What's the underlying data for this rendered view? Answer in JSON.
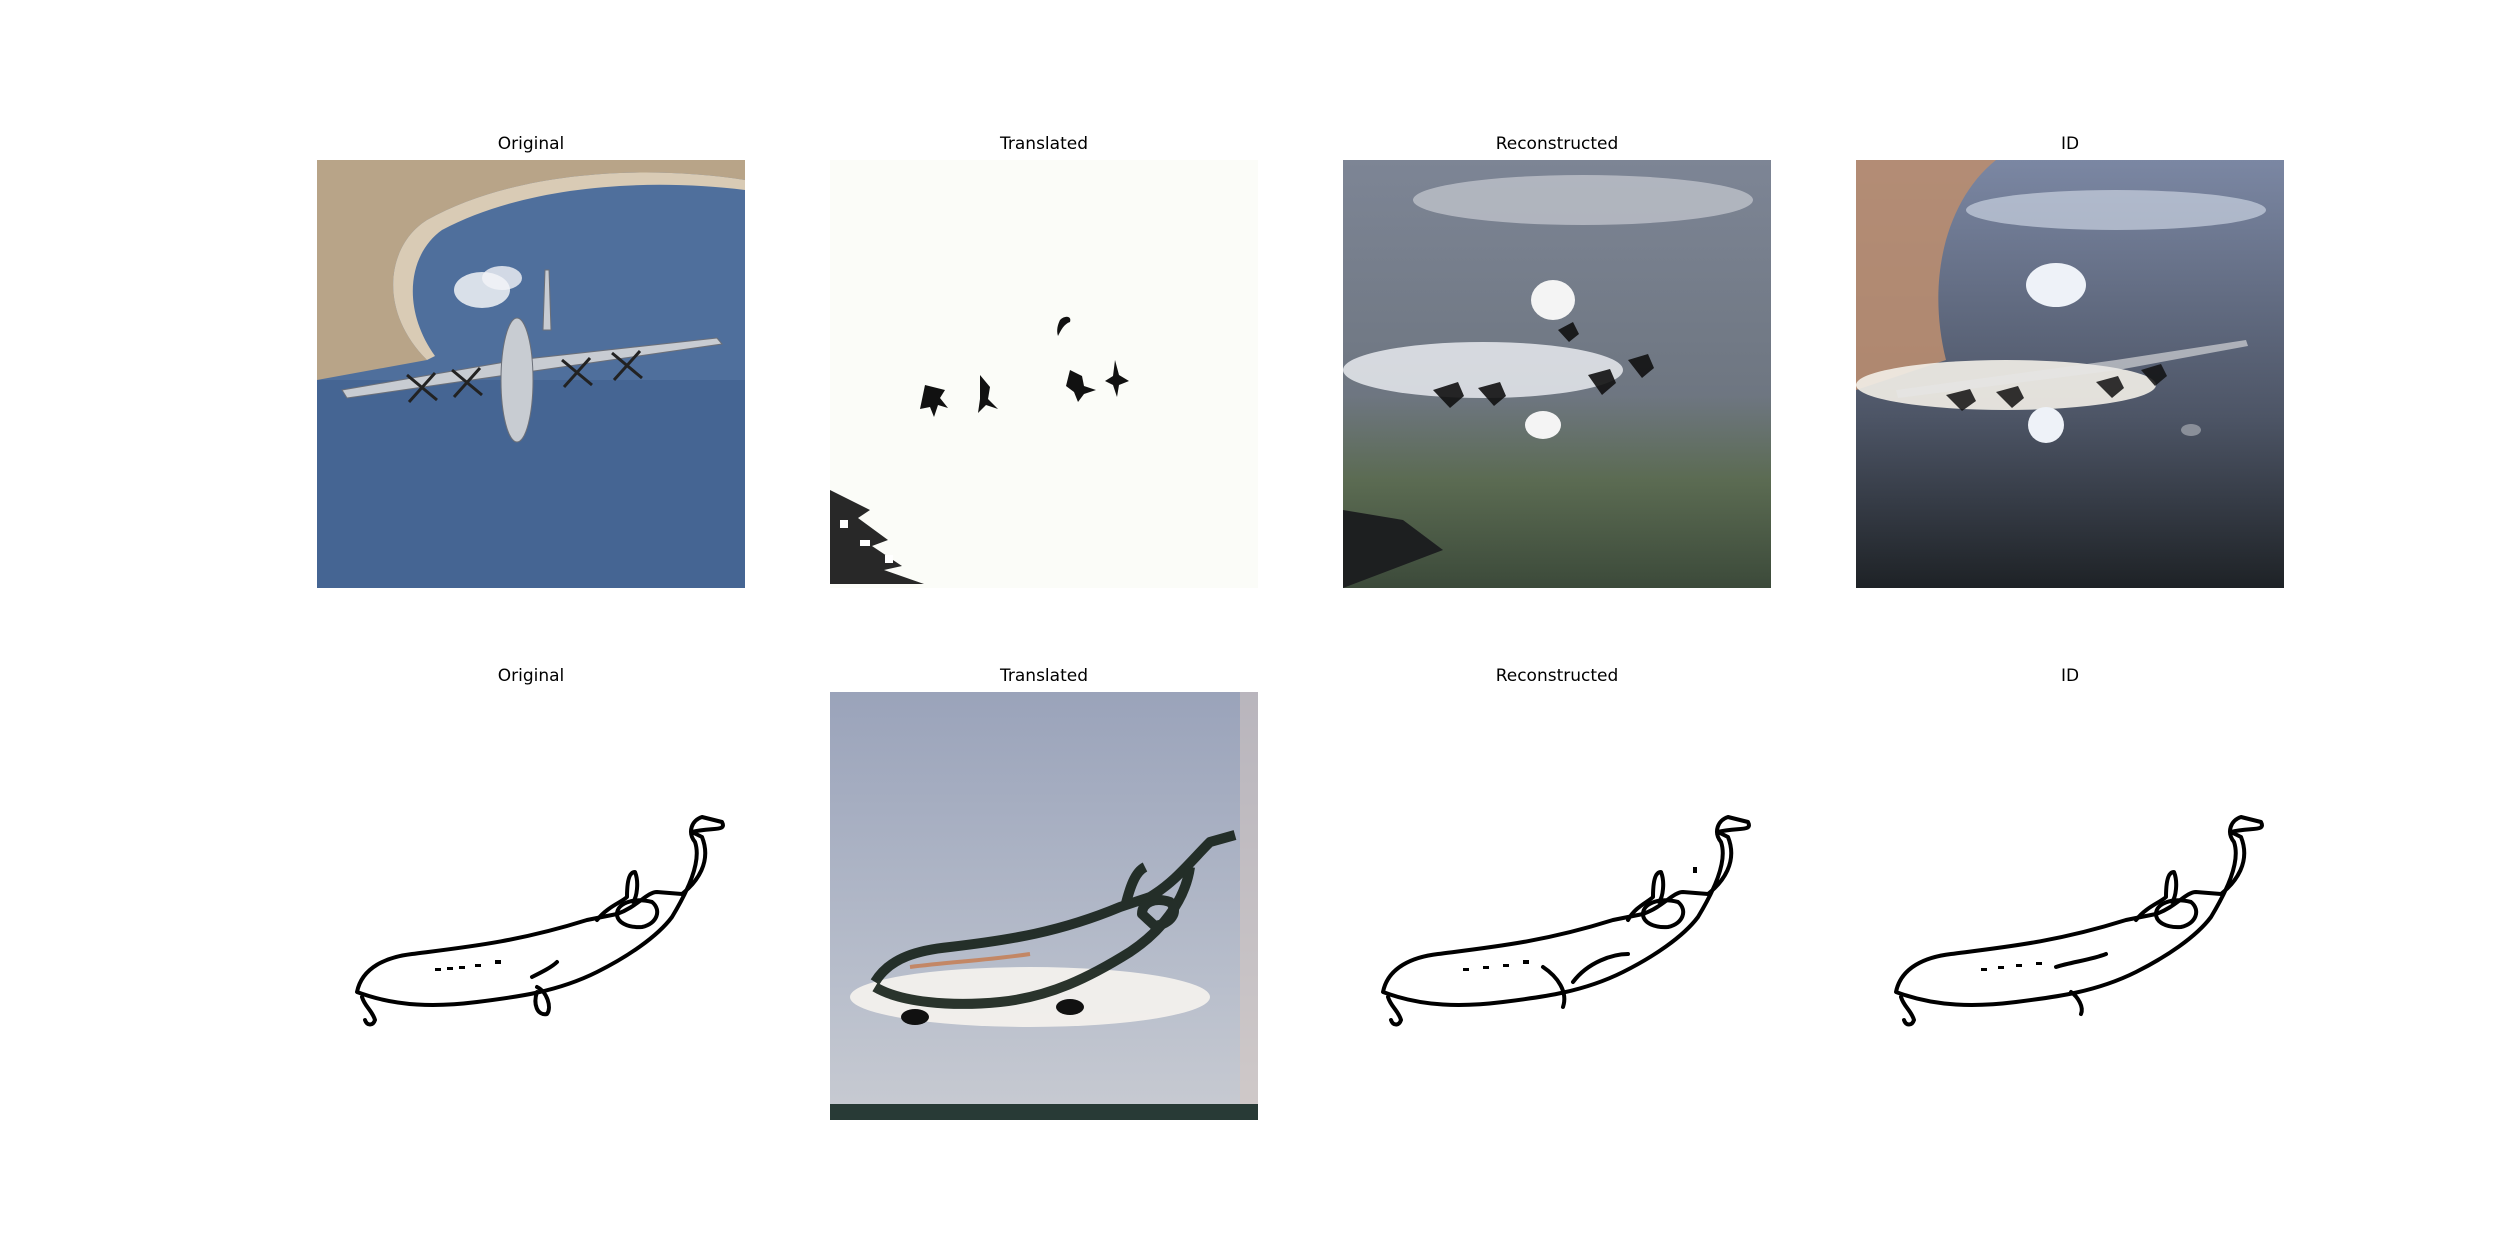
{
  "rows": [
    {
      "panels": [
        {
          "title": "Original"
        },
        {
          "title": "Translated"
        },
        {
          "title": "Reconstructed"
        },
        {
          "title": "ID"
        }
      ]
    },
    {
      "panels": [
        {
          "title": "Original"
        },
        {
          "title": "Translated"
        },
        {
          "title": "Reconstructed"
        },
        {
          "title": "ID"
        }
      ]
    }
  ],
  "colors": {
    "sea_blue": "#4f6f9c",
    "coast_sand": "#b8a488",
    "sky_grey": "#8a93ad",
    "line_black": "#000000"
  }
}
